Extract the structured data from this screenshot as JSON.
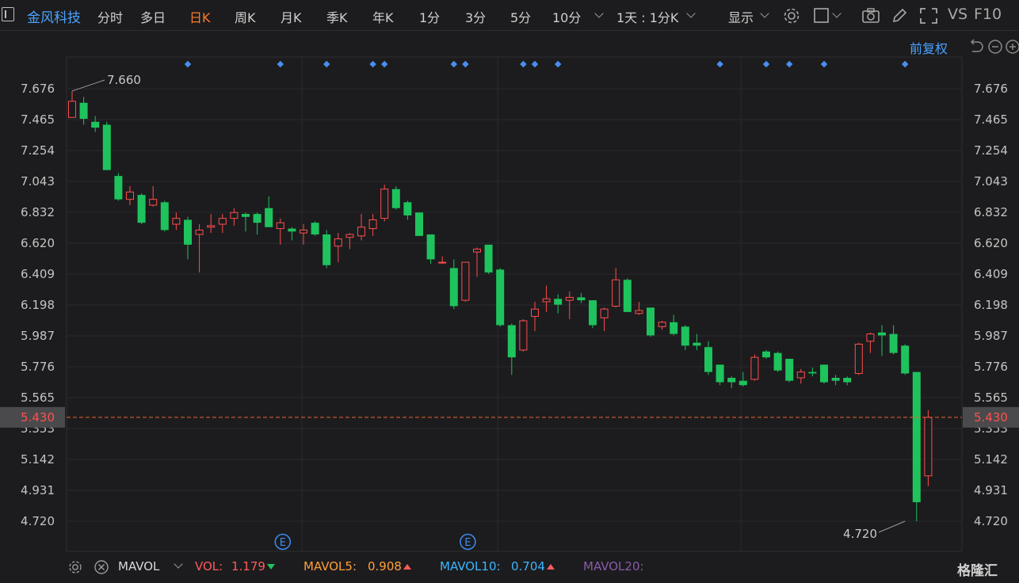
{
  "toolbar": {
    "stock_name": "金风科技",
    "timeframes": [
      {
        "label": "分时",
        "active": false
      },
      {
        "label": "多日",
        "active": false
      },
      {
        "label": "日K",
        "active": true
      },
      {
        "label": "周K",
        "active": false
      },
      {
        "label": "月K",
        "active": false
      },
      {
        "label": "季K",
        "active": false
      },
      {
        "label": "年K",
        "active": false
      },
      {
        "label": "1分",
        "active": false
      },
      {
        "label": "3分",
        "active": false
      },
      {
        "label": "5分",
        "active": false
      },
      {
        "label": "10分",
        "active": false
      }
    ],
    "interval_select": "1天 : 1分K",
    "display_label": "显示",
    "vs_label": "VS",
    "f10_label": "F10",
    "icons": [
      "menu-icon",
      "chevron-down-icon",
      "gear-icon",
      "square-icon",
      "camera-icon",
      "pen-icon",
      "fullscreen-icon"
    ]
  },
  "subbar": {
    "adjust_label": "前复权",
    "icons": [
      "undo-icon",
      "minus-circle-icon",
      "plus-circle-icon"
    ]
  },
  "chart_data": {
    "type": "candlestick",
    "yticks": [
      "7.676",
      "7.465",
      "7.254",
      "7.043",
      "6.832",
      "6.620",
      "6.409",
      "6.198",
      "5.987",
      "5.776",
      "5.565",
      "5.353",
      "5.142",
      "4.931",
      "4.720"
    ],
    "ylim": [
      4.72,
      7.676
    ],
    "current_price": "5.430",
    "max_label": "7.660",
    "min_label": "4.720",
    "grid": true,
    "up_color": "#ff4d4d",
    "down_color": "#1ec35d",
    "candles": [
      {
        "o": 7.48,
        "c": 7.59,
        "h": 7.66,
        "l": 7.48
      },
      {
        "o": 7.58,
        "c": 7.47,
        "h": 7.62,
        "l": 7.43
      },
      {
        "o": 7.45,
        "c": 7.41,
        "h": 7.49,
        "l": 7.38
      },
      {
        "o": 7.43,
        "c": 7.12,
        "h": 7.45,
        "l": 7.12
      },
      {
        "o": 7.08,
        "c": 6.92,
        "h": 7.1,
        "l": 6.91
      },
      {
        "o": 6.92,
        "c": 6.97,
        "h": 7.01,
        "l": 6.88
      },
      {
        "o": 6.95,
        "c": 6.76,
        "h": 6.96,
        "l": 6.75
      },
      {
        "o": 6.88,
        "c": 6.92,
        "h": 7.01,
        "l": 6.87
      },
      {
        "o": 6.9,
        "c": 6.71,
        "h": 6.91,
        "l": 6.7
      },
      {
        "o": 6.75,
        "c": 6.79,
        "h": 6.83,
        "l": 6.71
      },
      {
        "o": 6.78,
        "c": 6.61,
        "h": 6.8,
        "l": 6.51
      },
      {
        "o": 6.68,
        "c": 6.71,
        "h": 6.75,
        "l": 6.42
      },
      {
        "o": 6.73,
        "c": 6.74,
        "h": 6.82,
        "l": 6.69
      },
      {
        "o": 6.75,
        "c": 6.79,
        "h": 6.82,
        "l": 6.69
      },
      {
        "o": 6.79,
        "c": 6.83,
        "h": 6.86,
        "l": 6.74
      },
      {
        "o": 6.82,
        "c": 6.8,
        "h": 6.83,
        "l": 6.7
      },
      {
        "o": 6.82,
        "c": 6.76,
        "h": 6.83,
        "l": 6.68
      },
      {
        "o": 6.86,
        "c": 6.73,
        "h": 6.94,
        "l": 6.73
      },
      {
        "o": 6.72,
        "c": 6.76,
        "h": 6.79,
        "l": 6.61
      },
      {
        "o": 6.72,
        "c": 6.7,
        "h": 6.73,
        "l": 6.64
      },
      {
        "o": 6.69,
        "c": 6.71,
        "h": 6.75,
        "l": 6.61
      },
      {
        "o": 6.76,
        "c": 6.68,
        "h": 6.77,
        "l": 6.67
      },
      {
        "o": 6.68,
        "c": 6.47,
        "h": 6.71,
        "l": 6.45
      },
      {
        "o": 6.6,
        "c": 6.65,
        "h": 6.69,
        "l": 6.49
      },
      {
        "o": 6.66,
        "c": 6.68,
        "h": 6.69,
        "l": 6.58
      },
      {
        "o": 6.67,
        "c": 6.73,
        "h": 6.82,
        "l": 6.64
      },
      {
        "o": 6.72,
        "c": 6.78,
        "h": 6.82,
        "l": 6.67
      },
      {
        "o": 6.79,
        "c": 6.99,
        "h": 7.02,
        "l": 6.77
      },
      {
        "o": 6.99,
        "c": 6.86,
        "h": 7.01,
        "l": 6.85
      },
      {
        "o": 6.9,
        "c": 6.81,
        "h": 6.91,
        "l": 6.78
      },
      {
        "o": 6.83,
        "c": 6.67,
        "h": 6.83,
        "l": 6.67
      },
      {
        "o": 6.68,
        "c": 6.51,
        "h": 6.68,
        "l": 6.48
      },
      {
        "o": 6.49,
        "c": 6.49,
        "h": 6.53,
        "l": 6.48
      },
      {
        "o": 6.45,
        "c": 6.19,
        "h": 6.51,
        "l": 6.17
      },
      {
        "o": 6.23,
        "c": 6.49,
        "h": 6.49,
        "l": 6.22
      },
      {
        "o": 6.56,
        "c": 6.58,
        "h": 6.59,
        "l": 6.39
      },
      {
        "o": 6.61,
        "c": 6.42,
        "h": 6.61,
        "l": 6.41
      },
      {
        "o": 6.44,
        "c": 6.06,
        "h": 6.45,
        "l": 6.05
      },
      {
        "o": 6.06,
        "c": 5.84,
        "h": 6.07,
        "l": 5.72
      },
      {
        "o": 5.89,
        "c": 6.09,
        "h": 6.1,
        "l": 5.88
      },
      {
        "o": 6.12,
        "c": 6.17,
        "h": 6.22,
        "l": 6.02
      },
      {
        "o": 6.22,
        "c": 6.24,
        "h": 6.33,
        "l": 6.15
      },
      {
        "o": 6.24,
        "c": 6.2,
        "h": 6.27,
        "l": 6.14
      },
      {
        "o": 6.23,
        "c": 6.25,
        "h": 6.29,
        "l": 6.1
      },
      {
        "o": 6.25,
        "c": 6.23,
        "h": 6.28,
        "l": 6.21
      },
      {
        "o": 6.23,
        "c": 6.06,
        "h": 6.23,
        "l": 6.04
      },
      {
        "o": 6.11,
        "c": 6.17,
        "h": 6.18,
        "l": 6.02
      },
      {
        "o": 6.19,
        "c": 6.37,
        "h": 6.45,
        "l": 6.18
      },
      {
        "o": 6.37,
        "c": 6.15,
        "h": 6.38,
        "l": 6.15
      },
      {
        "o": 6.14,
        "c": 6.16,
        "h": 6.22,
        "l": 6.13
      },
      {
        "o": 6.18,
        "c": 5.99,
        "h": 6.18,
        "l": 5.98
      },
      {
        "o": 6.05,
        "c": 6.08,
        "h": 6.09,
        "l": 6.03
      },
      {
        "o": 6.08,
        "c": 6.0,
        "h": 6.13,
        "l": 5.99
      },
      {
        "o": 6.05,
        "c": 5.92,
        "h": 6.06,
        "l": 5.89
      },
      {
        "o": 5.94,
        "c": 5.92,
        "h": 6.0,
        "l": 5.89
      },
      {
        "o": 5.91,
        "c": 5.74,
        "h": 5.95,
        "l": 5.72
      },
      {
        "o": 5.79,
        "c": 5.67,
        "h": 5.79,
        "l": 5.65
      },
      {
        "o": 5.7,
        "c": 5.67,
        "h": 5.71,
        "l": 5.63
      },
      {
        "o": 5.68,
        "c": 5.65,
        "h": 5.74,
        "l": 5.64
      },
      {
        "o": 5.69,
        "c": 5.84,
        "h": 5.86,
        "l": 5.68
      },
      {
        "o": 5.88,
        "c": 5.84,
        "h": 5.89,
        "l": 5.83
      },
      {
        "o": 5.87,
        "c": 5.75,
        "h": 5.88,
        "l": 5.74
      },
      {
        "o": 5.83,
        "c": 5.68,
        "h": 5.83,
        "l": 5.67
      },
      {
        "o": 5.7,
        "c": 5.74,
        "h": 5.76,
        "l": 5.66
      },
      {
        "o": 5.74,
        "c": 5.73,
        "h": 5.77,
        "l": 5.71
      },
      {
        "o": 5.79,
        "c": 5.67,
        "h": 5.79,
        "l": 5.66
      },
      {
        "o": 5.7,
        "c": 5.68,
        "h": 5.72,
        "l": 5.65
      },
      {
        "o": 5.7,
        "c": 5.67,
        "h": 5.71,
        "l": 5.65
      },
      {
        "o": 5.73,
        "c": 5.93,
        "h": 5.94,
        "l": 5.72
      },
      {
        "o": 5.95,
        "c": 6.0,
        "h": 6.01,
        "l": 5.87
      },
      {
        "o": 6.01,
        "c": 5.99,
        "h": 6.06,
        "l": 5.85
      },
      {
        "o": 6.0,
        "c": 5.87,
        "h": 6.06,
        "l": 5.86
      },
      {
        "o": 5.92,
        "c": 5.73,
        "h": 5.93,
        "l": 5.72
      },
      {
        "o": 5.74,
        "c": 4.85,
        "h": 5.74,
        "l": 4.72
      },
      {
        "o": 5.03,
        "c": 5.43,
        "h": 5.48,
        "l": 4.96
      }
    ],
    "event_markers": [
      {
        "index": 18,
        "label": "E"
      },
      {
        "index": 34,
        "label": "E"
      }
    ],
    "top_markers": [
      10,
      18,
      22,
      26,
      27,
      33,
      34,
      39,
      40,
      42,
      56,
      60,
      62,
      65,
      72
    ]
  },
  "volume_bar": {
    "indicator": "MAVOL",
    "vol_label": "VOL:",
    "vol_value": "1.179",
    "vol_color": "#ff5a5a",
    "mavol5_label": "MAVOL5:",
    "mavol5_value": "0.908",
    "mavol5_color": "#ff9f3a",
    "mavol10_label": "MAVOL10:",
    "mavol10_value": "0.704",
    "mavol10_color": "#3ab6ff",
    "mavol20_label": "MAVOL20:",
    "mavol20_color": "#8a5aa8"
  },
  "watermark": "格隆汇"
}
